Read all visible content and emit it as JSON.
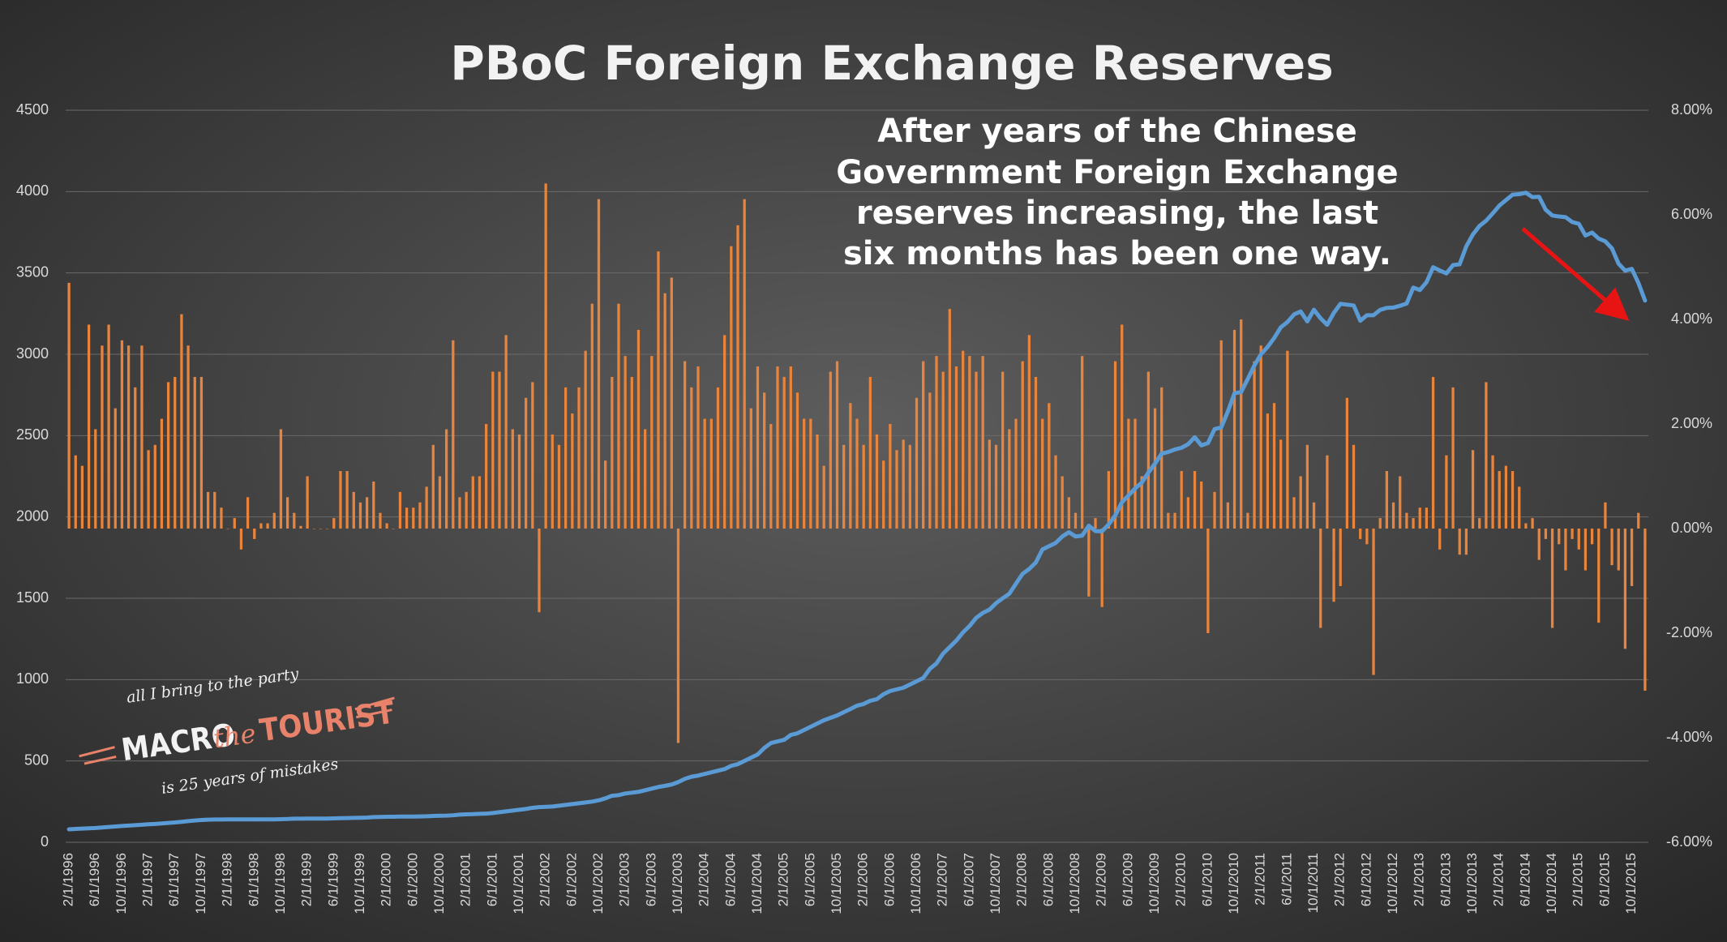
{
  "chart_data": {
    "type": "combo",
    "title": "PBoC Foreign Exchange Reserves",
    "annotation": [
      "After years of the Chinese",
      "Government Foreign Exchange",
      "reserves increasing, the last",
      "six months has been one way."
    ],
    "logo": {
      "top": "all I bring to the party",
      "main": [
        "MACRO",
        "the",
        "TOURIST"
      ],
      "bottom": "is 25 years of mistakes"
    },
    "grid": true,
    "ylim": [
      0,
      4500
    ],
    "yticks": [
      0,
      500,
      1000,
      1500,
      2000,
      2500,
      3000,
      3500,
      4000,
      4500
    ],
    "y2lim": [
      -6,
      8
    ],
    "y2ticks": [
      {
        "value": -6,
        "label": "-6.00%"
      },
      {
        "value": -4,
        "label": "-4.00%"
      },
      {
        "value": -2,
        "label": "-2.00%"
      },
      {
        "value": 0,
        "label": "0.00%"
      },
      {
        "value": 2,
        "label": "2.00%"
      },
      {
        "value": 4,
        "label": "4.00%"
      },
      {
        "value": 6,
        "label": "6.00%"
      },
      {
        "value": 8,
        "label": "8.00%"
      }
    ],
    "categories": [
      "2/1/1996",
      null,
      null,
      null,
      "6/1/1996",
      null,
      null,
      null,
      "10/1/1996",
      null,
      null,
      null,
      "2/1/1997",
      null,
      null,
      null,
      "6/1/1997",
      null,
      null,
      null,
      "10/1/1997",
      null,
      null,
      null,
      "2/1/1998",
      null,
      null,
      null,
      "6/1/1998",
      null,
      null,
      null,
      "10/1/1998",
      null,
      null,
      null,
      "2/1/1999",
      null,
      null,
      null,
      "6/1/1999",
      null,
      null,
      null,
      "10/1/1999",
      null,
      null,
      null,
      "2/1/2000",
      null,
      null,
      null,
      "6/1/2000",
      null,
      null,
      null,
      "10/1/2000",
      null,
      null,
      null,
      "2/1/2001",
      null,
      null,
      null,
      "6/1/2001",
      null,
      null,
      null,
      "10/1/2001",
      null,
      null,
      null,
      "2/1/2002",
      null,
      null,
      null,
      "6/1/2002",
      null,
      null,
      null,
      "10/1/2002",
      null,
      null,
      null,
      "2/1/2003",
      null,
      null,
      null,
      "6/1/2003",
      null,
      null,
      null,
      "10/1/2003",
      null,
      null,
      null,
      "2/1/2004",
      null,
      null,
      null,
      "6/1/2004",
      null,
      null,
      null,
      "10/1/2004",
      null,
      null,
      null,
      "2/1/2005",
      null,
      null,
      null,
      "6/1/2005",
      null,
      null,
      null,
      "10/1/2005",
      null,
      null,
      null,
      "2/1/2006",
      null,
      null,
      null,
      "6/1/2006",
      null,
      null,
      null,
      "10/1/2006",
      null,
      null,
      null,
      "2/1/2007",
      null,
      null,
      null,
      "6/1/2007",
      null,
      null,
      null,
      "10/1/2007",
      null,
      null,
      null,
      "2/1/2008",
      null,
      null,
      null,
      "6/1/2008",
      null,
      null,
      null,
      "10/1/2008",
      null,
      null,
      null,
      "2/1/2009",
      null,
      null,
      null,
      "6/1/2009",
      null,
      null,
      null,
      "10/1/2009",
      null,
      null,
      null,
      "2/1/2010",
      null,
      null,
      null,
      "6/1/2010",
      null,
      null,
      null,
      "10/1/2010",
      null,
      null,
      null,
      "2/1/2011",
      null,
      null,
      null,
      "6/1/2011",
      null,
      null,
      null,
      "10/1/2011",
      null,
      null,
      null,
      "2/1/2012",
      null,
      null,
      null,
      "6/1/2012",
      null,
      null,
      null,
      "10/1/2012",
      null,
      null,
      null,
      "2/1/2013",
      null,
      null,
      null,
      "6/1/2013",
      null,
      null,
      null,
      "10/1/2013",
      null,
      null,
      null,
      "2/1/2014",
      null,
      null,
      null,
      "6/1/2014",
      null,
      null,
      null,
      "10/1/2014",
      null,
      null,
      null,
      "2/1/2015",
      null,
      null,
      null,
      "6/1/2015",
      null,
      null,
      null,
      "10/1/2015",
      null,
      null
    ],
    "series": [
      {
        "type": "bar",
        "axis": "y2",
        "color": "#e8843c",
        "values": [
          4.7,
          1.4,
          1.2,
          3.9,
          1.9,
          3.5,
          3.9,
          2.3,
          3.6,
          3.5,
          2.7,
          3.5,
          1.5,
          1.6,
          2.1,
          2.8,
          2.9,
          4.1,
          3.5,
          2.9,
          2.9,
          0.7,
          0.7,
          0.4,
          0.0,
          0.2,
          -0.4,
          0.6,
          -0.2,
          0.1,
          0.1,
          0.3,
          1.9,
          0.6,
          0.3,
          0.05,
          1.0,
          0.0,
          0.0,
          0.0,
          0.2,
          1.1,
          1.1,
          0.7,
          0.5,
          0.6,
          0.9,
          0.3,
          0.1,
          0.0,
          0.7,
          0.4,
          0.4,
          0.5,
          0.8,
          1.6,
          1.0,
          1.9,
          3.6,
          0.6,
          0.7,
          1.0,
          1.0,
          2.0,
          3.0,
          3.0,
          3.7,
          1.9,
          1.8,
          2.5,
          2.8,
          -1.6,
          6.6,
          1.8,
          1.6,
          2.7,
          2.2,
          2.7,
          3.4,
          4.3,
          6.3,
          1.3,
          2.9,
          4.3,
          3.3,
          2.9,
          3.8,
          1.9,
          3.3,
          5.3,
          4.5,
          4.8,
          -4.1,
          3.2,
          2.7,
          3.1,
          2.1,
          2.1,
          2.7,
          3.7,
          5.4,
          5.8,
          6.3,
          2.3,
          3.1,
          2.6,
          2.0,
          3.1,
          2.9,
          3.1,
          2.6,
          2.1,
          2.1,
          1.8,
          1.2,
          3.0,
          3.2,
          1.6,
          2.4,
          2.1,
          1.6,
          2.9,
          1.8,
          1.3,
          2.0,
          1.5,
          1.7,
          1.6,
          2.5,
          3.2,
          2.6,
          3.3,
          3.0,
          4.2,
          3.1,
          3.4,
          3.3,
          3.0,
          3.3,
          1.7,
          1.6,
          3.0,
          1.9,
          2.1,
          3.2,
          3.7,
          2.9,
          2.1,
          2.4,
          1.4,
          1.0,
          0.6,
          0.3,
          3.3,
          -1.3,
          0.2,
          -1.5,
          1.1,
          3.2,
          3.9,
          2.1,
          2.1,
          1.0,
          3.0,
          2.3,
          2.7,
          0.3,
          0.3,
          1.1,
          0.6,
          1.1,
          0.9,
          -2.0,
          0.7,
          3.6,
          0.5,
          3.8,
          4.0,
          0.3,
          3.2,
          3.5,
          2.2,
          2.4,
          1.7,
          3.4,
          0.6,
          1.0,
          1.6,
          0.5,
          -1.9,
          1.4,
          -1.4,
          -1.1,
          2.5,
          1.6,
          -0.2,
          -0.3,
          -2.8,
          0.2,
          1.1,
          0.5,
          1.0,
          0.3,
          0.2,
          0.4,
          0.4,
          2.9,
          -0.4,
          1.4,
          2.7,
          -0.5,
          -0.5,
          1.5,
          0.2,
          2.8,
          1.4,
          1.1,
          1.2,
          1.1,
          0.8,
          0.1,
          0.2,
          -0.6,
          -0.2,
          -1.9,
          -0.3,
          -0.8,
          -0.2,
          -0.4,
          -0.8,
          -0.3,
          -1.8,
          0.5,
          -0.7,
          -0.8,
          -2.3,
          -1.1,
          0.3,
          -3.1
        ]
      },
      {
        "type": "line",
        "color": "#5b9bd5",
        "values": [
          80,
          82,
          84,
          86,
          88,
          91,
          94,
          97,
          100,
          103,
          105,
          108,
          111,
          113,
          116,
          119,
          122,
          126,
          130,
          134,
          137,
          139,
          140,
          140,
          141,
          141,
          141,
          141,
          141,
          141,
          141,
          141,
          142,
          143,
          145,
          145,
          146,
          146,
          146,
          146,
          147,
          148,
          149,
          150,
          151,
          152,
          155,
          156,
          157,
          157,
          158,
          158,
          158,
          159,
          160,
          162,
          163,
          164,
          166,
          170,
          172,
          173,
          175,
          176,
          180,
          185,
          190,
          195,
          200,
          205,
          212,
          216,
          218,
          220,
          225,
          230,
          235,
          240,
          245,
          250,
          258,
          270,
          286,
          290,
          300,
          305,
          310,
          320,
          330,
          340,
          347,
          355,
          370,
          390,
          403,
          410,
          420,
          430,
          440,
          450,
          470,
          480,
          500,
          520,
          540,
          580,
          610,
          620,
          630,
          660,
          670,
          690,
          710,
          730,
          750,
          765,
          780,
          800,
          819,
          840,
          850,
          870,
          880,
          910,
          930,
          940,
          950,
          970,
          990,
          1010,
          1066,
          1100,
          1160,
          1200,
          1240,
          1290,
          1330,
          1380,
          1410,
          1430,
          1470,
          1500,
          1528,
          1590,
          1650,
          1680,
          1720,
          1800,
          1820,
          1840,
          1880,
          1906,
          1880,
          1885,
          1946,
          1913,
          1912,
          1954,
          2009,
          2090,
          2132,
          2175,
          2211,
          2273,
          2328,
          2389,
          2399,
          2415,
          2425,
          2447,
          2490,
          2440,
          2454,
          2540,
          2550,
          2648,
          2760,
          2768,
          2847,
          2931,
          3000,
          3045,
          3100,
          3166,
          3198,
          3245,
          3263,
          3202,
          3274,
          3221,
          3181,
          3254,
          3310,
          3305,
          3300,
          3206,
          3240,
          3240,
          3273,
          3285,
          3287,
          3298,
          3312,
          3410,
          3395,
          3443,
          3535,
          3515,
          3497,
          3548,
          3553,
          3663,
          3736,
          3789,
          3821,
          3866,
          3914,
          3948,
          3981,
          3984,
          3993,
          3966,
          3968,
          3888,
          3853,
          3847,
          3843,
          3813,
          3802,
          3730,
          3748,
          3711,
          3694,
          3651,
          3557,
          3514,
          3525,
          3438,
          3330
        ]
      }
    ]
  }
}
